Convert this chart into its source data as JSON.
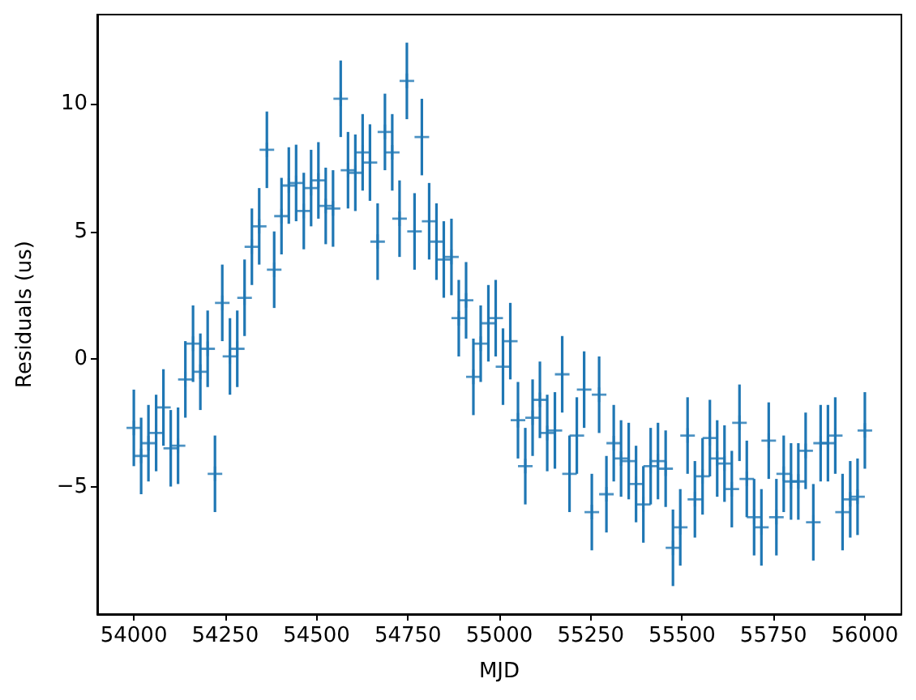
{
  "chart_data": {
    "type": "scatter",
    "xlabel": "MJD",
    "ylabel": "Residuals (us)",
    "color": "#1f77b4",
    "marker": "cross",
    "xlim": [
      53900,
      56100
    ],
    "ylim": [
      -10,
      13.5
    ],
    "xticks": [
      54000,
      54250,
      54500,
      54750,
      55000,
      55250,
      55500,
      55750,
      56000
    ],
    "yticks": [
      -5,
      0,
      5,
      10
    ],
    "x": [
      54000,
      54020,
      54040,
      54061,
      54081,
      54101,
      54121,
      54141,
      54162,
      54182,
      54202,
      54222,
      54242,
      54263,
      54283,
      54303,
      54323,
      54343,
      54364,
      54384,
      54404,
      54424,
      54444,
      54465,
      54485,
      54505,
      54525,
      54545,
      54566,
      54586,
      54606,
      54626,
      54646,
      54667,
      54687,
      54707,
      54727,
      54747,
      54768,
      54788,
      54808,
      54828,
      54848,
      54869,
      54889,
      54909,
      54929,
      54949,
      54970,
      54990,
      55010,
      55030,
      55051,
      55071,
      55091,
      55111,
      55131,
      55152,
      55172,
      55192,
      55212,
      55232,
      55253,
      55273,
      55293,
      55313,
      55333,
      55354,
      55374,
      55394,
      55414,
      55434,
      55455,
      55475,
      55495,
      55515,
      55535,
      55556,
      55576,
      55596,
      55616,
      55636,
      55657,
      55677,
      55697,
      55717,
      55737,
      55758,
      55778,
      55798,
      55818,
      55838,
      55859,
      55879,
      55899,
      55919,
      55939,
      55960,
      55980,
      56000
    ],
    "values": [
      -2.7,
      -3.8,
      -3.3,
      -2.9,
      -1.9,
      -3.5,
      -3.4,
      -0.8,
      0.6,
      -0.5,
      0.4,
      -4.5,
      2.2,
      0.1,
      0.4,
      2.4,
      4.4,
      5.2,
      8.2,
      3.5,
      5.6,
      6.8,
      6.9,
      5.8,
      6.7,
      7.0,
      6.0,
      5.9,
      10.2,
      7.4,
      7.3,
      8.1,
      7.7,
      4.6,
      8.9,
      8.1,
      5.5,
      10.9,
      5.0,
      8.7,
      5.4,
      4.6,
      3.9,
      4.0,
      1.6,
      2.3,
      -0.7,
      0.6,
      1.4,
      1.6,
      -0.3,
      0.7,
      -2.4,
      -4.2,
      -2.3,
      -1.6,
      -2.9,
      -2.8,
      -0.6,
      -4.5,
      -3.0,
      -1.2,
      -6.0,
      -1.4,
      -5.3,
      -3.3,
      -3.9,
      -4.0,
      -4.9,
      -5.7,
      -4.2,
      -4.0,
      -4.3,
      -7.4,
      -6.6,
      -3.0,
      -5.5,
      -4.6,
      -3.1,
      -3.9,
      -4.1,
      -5.1,
      -2.5,
      -4.7,
      -6.2,
      -6.6,
      -3.2,
      -6.2,
      -4.5,
      -4.8,
      -4.8,
      -3.6,
      -6.4,
      -3.3,
      -3.3,
      -3.0,
      -6.0,
      -5.5,
      -5.4,
      -2.8
    ],
    "errors": [
      1.5,
      1.5,
      1.5,
      1.5,
      1.5,
      1.5,
      1.5,
      1.5,
      1.5,
      1.5,
      1.5,
      1.5,
      1.5,
      1.5,
      1.5,
      1.5,
      1.5,
      1.5,
      1.5,
      1.5,
      1.5,
      1.5,
      1.5,
      1.5,
      1.5,
      1.5,
      1.5,
      1.5,
      1.5,
      1.5,
      1.5,
      1.5,
      1.5,
      1.5,
      1.5,
      1.5,
      1.5,
      1.5,
      1.5,
      1.5,
      1.5,
      1.5,
      1.5,
      1.5,
      1.5,
      1.5,
      1.5,
      1.5,
      1.5,
      1.5,
      1.5,
      1.5,
      1.5,
      1.5,
      1.5,
      1.5,
      1.5,
      1.5,
      1.5,
      1.5,
      1.5,
      1.5,
      1.5,
      1.5,
      1.5,
      1.5,
      1.5,
      1.5,
      1.5,
      1.5,
      1.5,
      1.5,
      1.5,
      1.5,
      1.5,
      1.5,
      1.5,
      1.5,
      1.5,
      1.5,
      1.5,
      1.5,
      1.5,
      1.5,
      1.5,
      1.5,
      1.5,
      1.5,
      1.5,
      1.5,
      1.5,
      1.5,
      1.5,
      1.5,
      1.5,
      1.5,
      1.5,
      1.5,
      1.5,
      1.5
    ]
  }
}
